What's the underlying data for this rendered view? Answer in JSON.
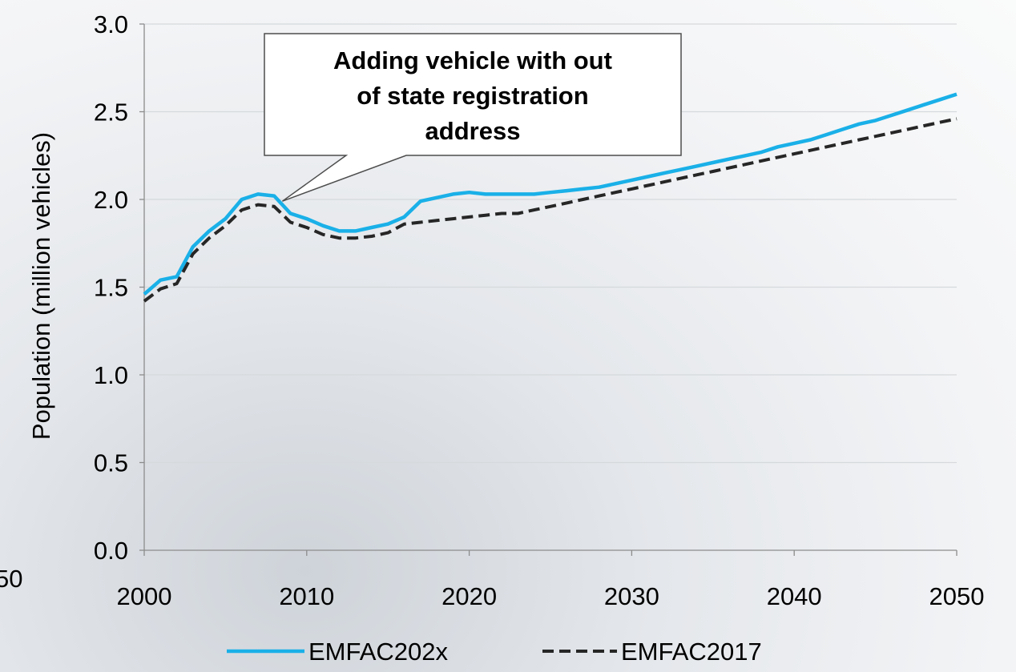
{
  "chart_data": {
    "type": "line",
    "ylabel": "Population (million vehicles)",
    "xlim": [
      2000,
      2050
    ],
    "ylim": [
      0,
      3.0
    ],
    "x_ticks": [
      "2000",
      "2010",
      "2020",
      "2030",
      "2040",
      "2050"
    ],
    "y_ticks": [
      "0.0",
      "0.5",
      "1.0",
      "1.5",
      "2.0",
      "2.5",
      "3.0"
    ],
    "grid": "horizontal",
    "legend_position": "bottom",
    "x": [
      2000,
      2001,
      2002,
      2003,
      2004,
      2005,
      2006,
      2007,
      2008,
      2009,
      2010,
      2011,
      2012,
      2013,
      2014,
      2015,
      2016,
      2017,
      2018,
      2019,
      2020,
      2021,
      2022,
      2023,
      2024,
      2025,
      2026,
      2027,
      2028,
      2029,
      2030,
      2031,
      2032,
      2033,
      2034,
      2035,
      2036,
      2037,
      2038,
      2039,
      2040,
      2041,
      2042,
      2043,
      2044,
      2045,
      2046,
      2047,
      2048,
      2049,
      2050
    ],
    "series": [
      {
        "name": "EMFAC202x",
        "color": "#1ab0e8",
        "dash": "solid",
        "values": [
          1.46,
          1.54,
          1.56,
          1.73,
          1.82,
          1.89,
          2.0,
          2.03,
          2.02,
          1.92,
          1.89,
          1.85,
          1.82,
          1.82,
          1.84,
          1.86,
          1.9,
          1.99,
          2.01,
          2.03,
          2.04,
          2.03,
          2.03,
          2.03,
          2.03,
          2.04,
          2.05,
          2.06,
          2.07,
          2.09,
          2.11,
          2.13,
          2.15,
          2.17,
          2.19,
          2.21,
          2.23,
          2.25,
          2.27,
          2.3,
          2.32,
          2.34,
          2.37,
          2.4,
          2.43,
          2.45,
          2.48,
          2.51,
          2.54,
          2.57,
          2.6
        ]
      },
      {
        "name": "EMFAC2017",
        "color": "#262626",
        "dash": "dashed",
        "values": [
          1.42,
          1.49,
          1.52,
          1.69,
          1.78,
          1.85,
          1.94,
          1.97,
          1.96,
          1.87,
          1.84,
          1.8,
          1.78,
          1.78,
          1.79,
          1.81,
          1.86,
          1.87,
          1.88,
          1.89,
          1.9,
          1.91,
          1.92,
          1.92,
          1.94,
          1.96,
          1.98,
          2.0,
          2.02,
          2.04,
          2.06,
          2.08,
          2.1,
          2.12,
          2.14,
          2.16,
          2.18,
          2.2,
          2.22,
          2.24,
          2.26,
          2.28,
          2.3,
          2.32,
          2.34,
          2.36,
          2.38,
          2.4,
          2.42,
          2.44,
          2.46
        ]
      }
    ],
    "annotations": [
      {
        "lines": [
          "Adding vehicle with out",
          "of state registration",
          "address"
        ],
        "points_to_x": 2008.5,
        "points_to_y": 1.99
      }
    ]
  },
  "cut_off_left_label": "50"
}
